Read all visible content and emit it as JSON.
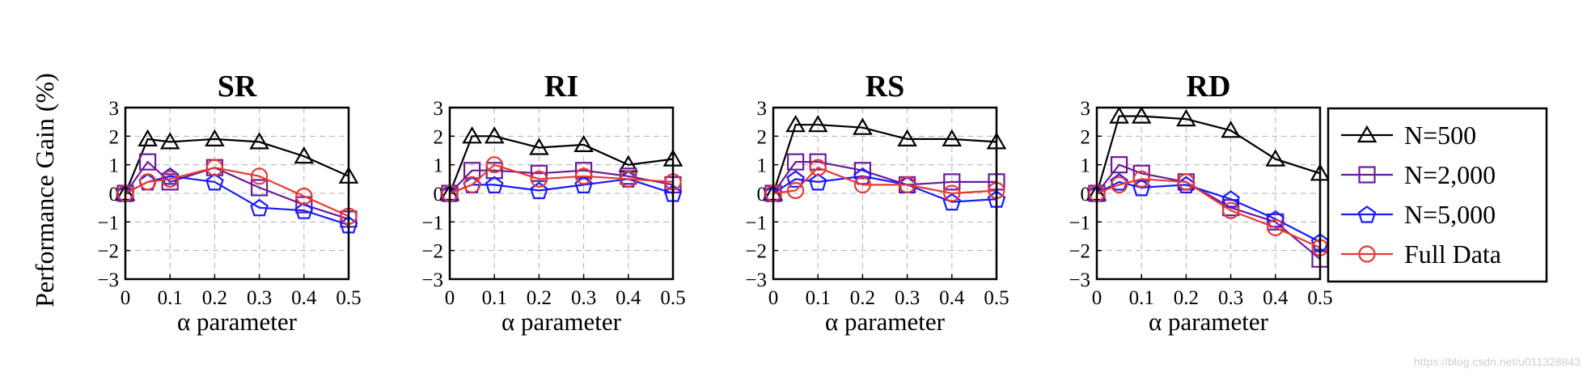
{
  "figure": {
    "ylabel": "Performance Gain (%)",
    "watermark": "https://blog.csdn.net/u011328843"
  },
  "legend": {
    "placement": "right",
    "entries": [
      {
        "label": "N=500",
        "marker": "triangle",
        "color": "#000000"
      },
      {
        "label": "N=2,000",
        "marker": "square",
        "color": "#6a1b9a"
      },
      {
        "label": "N=5,000",
        "marker": "pentagon",
        "color": "#1a1aff"
      },
      {
        "label": "Full Data",
        "marker": "circle",
        "color": "#e53935"
      }
    ]
  },
  "chart_data": [
    {
      "type": "line",
      "title": "SR",
      "xlabel": "α parameter",
      "ylabel": "Performance Gain (%)",
      "x": [
        0,
        0.05,
        0.1,
        0.2,
        0.3,
        0.4,
        0.5
      ],
      "xticks": [
        "0",
        "0.1",
        "0.2",
        "0.3",
        "0.4",
        "0.5"
      ],
      "xtick_values": [
        0,
        0.1,
        0.2,
        0.3,
        0.4,
        0.5
      ],
      "yticks": [
        "−3",
        "−2",
        "−1",
        "0",
        "1",
        "2",
        "3"
      ],
      "xlim": [
        0,
        0.5
      ],
      "ylim": [
        -3,
        3
      ],
      "grid": true,
      "series": [
        {
          "name": "N=500",
          "values": [
            0,
            1.9,
            1.8,
            1.9,
            1.8,
            1.3,
            0.6
          ]
        },
        {
          "name": "N=2,000",
          "values": [
            0,
            1.1,
            0.4,
            0.9,
            0.2,
            -0.4,
            -0.9
          ]
        },
        {
          "name": "N=5,000",
          "values": [
            0,
            0.4,
            0.6,
            0.4,
            -0.5,
            -0.6,
            -1.1
          ]
        },
        {
          "name": "Full Data",
          "values": [
            0,
            0.4,
            0.5,
            0.9,
            0.6,
            -0.1,
            -0.8
          ]
        }
      ]
    },
    {
      "type": "line",
      "title": "RI",
      "xlabel": "α parameter",
      "x": [
        0,
        0.05,
        0.1,
        0.2,
        0.3,
        0.4,
        0.5
      ],
      "xticks": [
        "0",
        "0.1",
        "0.2",
        "0.3",
        "0.4",
        "0.5"
      ],
      "xtick_values": [
        0,
        0.1,
        0.2,
        0.3,
        0.4,
        0.5
      ],
      "yticks": [
        "−3",
        "−2",
        "−1",
        "0",
        "1",
        "2",
        "3"
      ],
      "xlim": [
        0,
        0.5
      ],
      "ylim": [
        -3,
        3
      ],
      "grid": true,
      "series": [
        {
          "name": "N=500",
          "values": [
            0,
            2.0,
            2.0,
            1.6,
            1.7,
            1.0,
            1.2
          ]
        },
        {
          "name": "N=2,000",
          "values": [
            0,
            0.8,
            0.8,
            0.7,
            0.8,
            0.6,
            0.3
          ]
        },
        {
          "name": "N=5,000",
          "values": [
            0,
            0.3,
            0.3,
            0.1,
            0.3,
            0.5,
            0.0
          ]
        },
        {
          "name": "Full Data",
          "values": [
            0,
            0.3,
            1.0,
            0.5,
            0.6,
            0.5,
            0.4
          ]
        }
      ]
    },
    {
      "type": "line",
      "title": "RS",
      "xlabel": "α parameter",
      "x": [
        0,
        0.05,
        0.1,
        0.2,
        0.3,
        0.4,
        0.5
      ],
      "xticks": [
        "0",
        "0.1",
        "0.2",
        "0.3",
        "0.4",
        "0.5"
      ],
      "xtick_values": [
        0,
        0.1,
        0.2,
        0.3,
        0.4,
        0.5
      ],
      "yticks": [
        "−3",
        "−2",
        "−1",
        "0",
        "1",
        "2",
        "3"
      ],
      "xlim": [
        0,
        0.5
      ],
      "ylim": [
        -3,
        3
      ],
      "grid": true,
      "series": [
        {
          "name": "N=500",
          "values": [
            0,
            2.4,
            2.4,
            2.3,
            1.9,
            1.9,
            1.8
          ]
        },
        {
          "name": "N=2,000",
          "values": [
            0,
            1.1,
            1.1,
            0.8,
            0.3,
            0.4,
            0.4
          ]
        },
        {
          "name": "N=5,000",
          "values": [
            0,
            0.5,
            0.4,
            0.6,
            0.3,
            -0.3,
            -0.2
          ]
        },
        {
          "name": "Full Data",
          "values": [
            0,
            0.1,
            0.9,
            0.3,
            0.3,
            0.0,
            0.1
          ]
        }
      ]
    },
    {
      "type": "line",
      "title": "RD",
      "xlabel": "α parameter",
      "x": [
        0,
        0.05,
        0.1,
        0.2,
        0.3,
        0.4,
        0.5
      ],
      "xticks": [
        "0",
        "0.1",
        "0.2",
        "0.3",
        "0.4",
        "0.5"
      ],
      "xtick_values": [
        0,
        0.1,
        0.2,
        0.3,
        0.4,
        0.5
      ],
      "yticks": [
        "−3",
        "−2",
        "−1",
        "0",
        "1",
        "2",
        "3"
      ],
      "xlim": [
        0,
        0.5
      ],
      "ylim": [
        -3,
        3
      ],
      "grid": true,
      "series": [
        {
          "name": "N=500",
          "values": [
            0,
            2.7,
            2.7,
            2.6,
            2.2,
            1.2,
            0.7
          ]
        },
        {
          "name": "N=2,000",
          "values": [
            0,
            1.0,
            0.7,
            0.4,
            -0.5,
            -1.0,
            -2.3
          ]
        },
        {
          "name": "N=5,000",
          "values": [
            0,
            0.4,
            0.2,
            0.3,
            -0.2,
            -0.9,
            -1.7
          ]
        },
        {
          "name": "Full Data",
          "values": [
            0,
            0.3,
            0.5,
            0.4,
            -0.6,
            -1.2,
            -1.9
          ]
        }
      ]
    }
  ]
}
